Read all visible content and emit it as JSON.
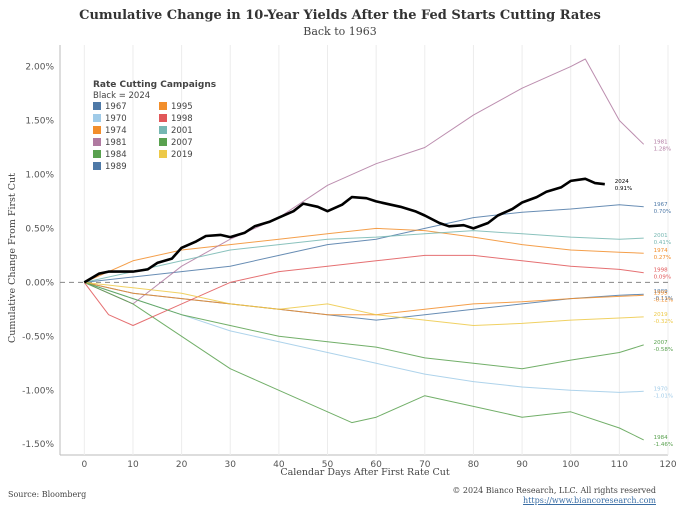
{
  "chart_data": {
    "type": "line",
    "title": "Cumulative Change in 10-Year Yields After the Fed Starts Cutting Rates",
    "subtitle": "Back to 1963",
    "xlabel": "Calendar Days After First Rate Cut",
    "ylabel": "Cumulative Change From First Cut",
    "xlim": [
      -5,
      120
    ],
    "ylim": [
      -1.6,
      2.2
    ],
    "x_ticks": [
      0,
      10,
      20,
      30,
      40,
      50,
      60,
      70,
      80,
      90,
      100,
      110,
      120
    ],
    "y_ticks": [
      -1.5,
      -1.0,
      -0.5,
      0.0,
      0.5,
      1.0,
      1.5,
      2.0
    ],
    "y_tick_labels": [
      "-1.50%",
      "-1.00%",
      "-0.50%",
      "0.00%",
      "0.50%",
      "1.00%",
      "1.50%",
      "2.00%"
    ],
    "zero_line": "dashed",
    "grid": "vertical",
    "legend": {
      "title": "Rate Cutting Campaigns",
      "subtitle": "Black = 2024",
      "placement": "top-left",
      "col1": [
        "1967",
        "1970",
        "1974",
        "1981",
        "1984",
        "1989"
      ],
      "col2": [
        "1995",
        "1998",
        "2001",
        "2007",
        "2019"
      ]
    },
    "series": [
      {
        "name": "1967",
        "color": "#4e79a7",
        "end_label": "0.70%",
        "x": [
          0,
          10,
          20,
          30,
          40,
          50,
          60,
          70,
          80,
          90,
          100,
          110,
          115
        ],
        "values": [
          0,
          0.05,
          0.1,
          0.15,
          0.25,
          0.35,
          0.4,
          0.5,
          0.6,
          0.65,
          0.68,
          0.72,
          0.7
        ]
      },
      {
        "name": "1970",
        "color": "#a0cbe8",
        "end_label": "-1.01%",
        "x": [
          0,
          10,
          20,
          30,
          40,
          50,
          60,
          70,
          80,
          90,
          100,
          110,
          115
        ],
        "values": [
          0,
          -0.15,
          -0.3,
          -0.45,
          -0.55,
          -0.65,
          -0.75,
          -0.85,
          -0.92,
          -0.97,
          -1.0,
          -1.02,
          -1.01
        ]
      },
      {
        "name": "1974",
        "color": "#f28e2b",
        "end_label": "0.27%",
        "x": [
          0,
          10,
          20,
          30,
          40,
          50,
          60,
          70,
          80,
          90,
          100,
          110,
          115
        ],
        "values": [
          0,
          0.2,
          0.3,
          0.35,
          0.4,
          0.45,
          0.5,
          0.48,
          0.42,
          0.35,
          0.3,
          0.28,
          0.27
        ]
      },
      {
        "name": "1981",
        "color": "#b07aa1",
        "end_label": "1.28%",
        "x": [
          0,
          10,
          20,
          30,
          40,
          50,
          60,
          70,
          80,
          90,
          100,
          103,
          110,
          115
        ],
        "values": [
          0,
          -0.2,
          0.15,
          0.4,
          0.6,
          0.9,
          1.1,
          1.25,
          1.55,
          1.8,
          2.0,
          2.07,
          1.5,
          1.28
        ]
      },
      {
        "name": "1984",
        "color": "#59a14f",
        "end_label": "-1.46%",
        "x": [
          0,
          10,
          20,
          30,
          40,
          50,
          55,
          60,
          70,
          80,
          90,
          100,
          110,
          115
        ],
        "values": [
          0,
          -0.2,
          -0.5,
          -0.8,
          -1.0,
          -1.2,
          -1.3,
          -1.25,
          -1.05,
          -1.15,
          -1.25,
          -1.2,
          -1.35,
          -1.46
        ]
      },
      {
        "name": "1989",
        "color": "#4e79a7",
        "end_label": "-0.11%",
        "x": [
          0,
          10,
          20,
          30,
          40,
          50,
          60,
          70,
          80,
          90,
          100,
          110,
          115
        ],
        "values": [
          0,
          -0.1,
          -0.15,
          -0.2,
          -0.25,
          -0.3,
          -0.35,
          -0.3,
          -0.25,
          -0.2,
          -0.15,
          -0.12,
          -0.11
        ]
      },
      {
        "name": "1995",
        "color": "#f28e2b",
        "end_label": "-0.12%",
        "x": [
          0,
          10,
          20,
          30,
          40,
          50,
          60,
          70,
          80,
          90,
          100,
          110,
          115
        ],
        "values": [
          0,
          -0.1,
          -0.15,
          -0.2,
          -0.25,
          -0.3,
          -0.3,
          -0.25,
          -0.2,
          -0.18,
          -0.15,
          -0.13,
          -0.12
        ]
      },
      {
        "name": "1998",
        "color": "#e15759",
        "end_label": "0.09%",
        "x": [
          0,
          5,
          10,
          20,
          30,
          40,
          50,
          60,
          70,
          80,
          90,
          100,
          110,
          115
        ],
        "values": [
          0,
          -0.3,
          -0.4,
          -0.2,
          0.0,
          0.1,
          0.15,
          0.2,
          0.25,
          0.25,
          0.2,
          0.15,
          0.12,
          0.09
        ]
      },
      {
        "name": "2001",
        "color": "#76b7b2",
        "end_label": "0.41%",
        "x": [
          0,
          10,
          20,
          30,
          40,
          50,
          60,
          70,
          80,
          90,
          100,
          110,
          115
        ],
        "values": [
          0,
          0.1,
          0.2,
          0.3,
          0.35,
          0.4,
          0.42,
          0.45,
          0.48,
          0.45,
          0.42,
          0.4,
          0.41
        ]
      },
      {
        "name": "2007",
        "color": "#59a14f",
        "end_label": "-0.58%",
        "x": [
          0,
          10,
          20,
          30,
          40,
          50,
          60,
          70,
          80,
          90,
          100,
          110,
          115
        ],
        "values": [
          0,
          -0.15,
          -0.3,
          -0.4,
          -0.5,
          -0.55,
          -0.6,
          -0.7,
          -0.75,
          -0.8,
          -0.72,
          -0.65,
          -0.58
        ]
      },
      {
        "name": "2019",
        "color": "#edc948",
        "end_label": "-0.32%",
        "x": [
          0,
          10,
          20,
          30,
          40,
          50,
          60,
          70,
          80,
          90,
          100,
          110,
          115
        ],
        "values": [
          0,
          -0.05,
          -0.1,
          -0.2,
          -0.25,
          -0.2,
          -0.3,
          -0.35,
          -0.4,
          -0.38,
          -0.35,
          -0.33,
          -0.32
        ]
      },
      {
        "name": "2024",
        "color": "#000000",
        "end_label": "0.91%",
        "x": [
          0,
          3,
          5,
          8,
          10,
          13,
          15,
          18,
          20,
          23,
          25,
          28,
          30,
          33,
          35,
          38,
          40,
          43,
          45,
          48,
          50,
          53,
          55,
          58,
          60,
          63,
          65,
          68,
          70,
          73,
          75,
          78,
          80,
          83,
          85,
          88,
          90,
          93,
          95,
          98,
          100,
          103,
          105,
          107
        ],
        "values": [
          0,
          0.08,
          0.1,
          0.1,
          0.1,
          0.12,
          0.18,
          0.22,
          0.32,
          0.38,
          0.43,
          0.44,
          0.42,
          0.46,
          0.52,
          0.56,
          0.6,
          0.66,
          0.73,
          0.7,
          0.66,
          0.72,
          0.79,
          0.78,
          0.75,
          0.72,
          0.7,
          0.66,
          0.62,
          0.55,
          0.52,
          0.53,
          0.5,
          0.55,
          0.62,
          0.68,
          0.74,
          0.79,
          0.84,
          0.88,
          0.94,
          0.96,
          0.92,
          0.91
        ]
      }
    ]
  },
  "footer": {
    "source": "Source: Bloomberg",
    "copyright": "© 2024 Bianco Research, LLC. All rights reserved",
    "website": "https://www.biancoresearch.com"
  }
}
